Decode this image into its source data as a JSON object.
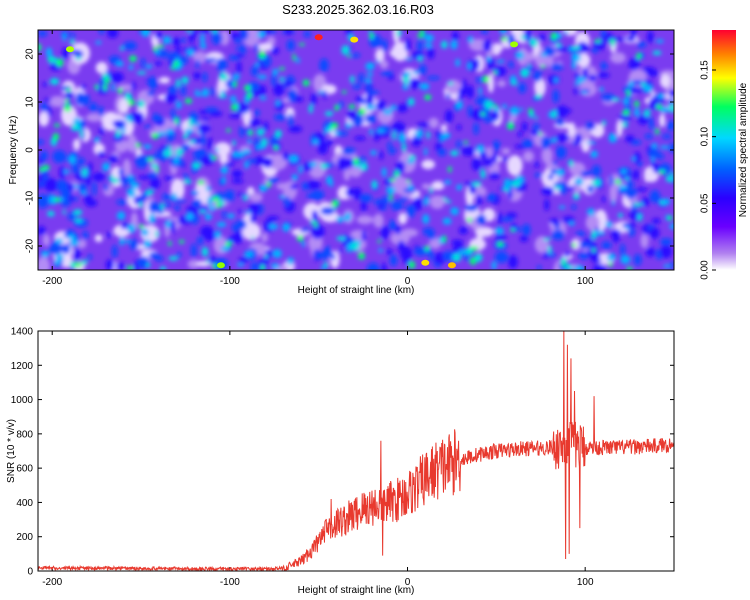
{
  "figure": {
    "title": "S233.2025.362.03.16.R03"
  },
  "chart_data": [
    {
      "type": "heatmap",
      "title": "S233.2025.362.03.16.R03",
      "xlabel": "Height of straight line (km)",
      "ylabel": "Frequency (Hz)",
      "xlim": [
        -208,
        150
      ],
      "ylim": [
        -25,
        25
      ],
      "xticks": [
        -200,
        -100,
        0,
        100
      ],
      "yticks": [
        -20,
        -10,
        0,
        10,
        20
      ],
      "colorbar": {
        "label": "Normalized spectral amplitude",
        "range": [
          0,
          0.18
        ],
        "ticks": [
          0.0,
          0.05,
          0.1,
          0.15
        ],
        "tick_labels": [
          "0.00",
          "0.05",
          "0.10",
          "0.15"
        ],
        "colormap": [
          "#ffffff",
          "#8a2be2",
          "#3a00ff",
          "#0040ff",
          "#00c8ff",
          "#00ff80",
          "#ffff00",
          "#ff8000",
          "#ff0040"
        ]
      },
      "description_of_values": "noise-like field, mostly 0.01-0.08, sparse peaks up to ~0.17"
    },
    {
      "type": "line",
      "xlabel": "Height of straight line (km)",
      "ylabel": "SNR (10 * v/v)",
      "xlim": [
        -208,
        150
      ],
      "ylim": [
        0,
        1400
      ],
      "xticks": [
        -200,
        -100,
        0,
        100
      ],
      "yticks": [
        0,
        200,
        400,
        600,
        800,
        1000,
        1200,
        1400
      ],
      "series": [
        {
          "name": "SNR",
          "color": "#e8392e",
          "x": [
            -208,
            -150,
            -100,
            -80,
            -70,
            -60,
            -55,
            -50,
            -45,
            -40,
            -35,
            -30,
            -25,
            -20,
            -15,
            -10,
            -5,
            0,
            5,
            10,
            15,
            20,
            25,
            30,
            40,
            50,
            60,
            70,
            80,
            85,
            90,
            95,
            100,
            110,
            120,
            130,
            140,
            150
          ],
          "values": [
            18,
            15,
            12,
            12,
            15,
            55,
            110,
            170,
            240,
            280,
            300,
            330,
            360,
            380,
            390,
            400,
            420,
            450,
            490,
            540,
            580,
            610,
            630,
            650,
            680,
            700,
            710,
            715,
            720,
            730,
            740,
            735,
            720,
            720,
            720,
            725,
            730,
            740
          ],
          "spikes": [
            {
              "x": -43,
              "y": 420
            },
            {
              "x": -15,
              "y": 760
            },
            {
              "x": -14,
              "y": 90
            },
            {
              "x": 88,
              "y": 1400
            },
            {
              "x": 89,
              "y": 70
            },
            {
              "x": 90,
              "y": 1320
            },
            {
              "x": 91,
              "y": 100
            },
            {
              "x": 92,
              "y": 1240
            },
            {
              "x": 94,
              "y": 1050
            },
            {
              "x": 97,
              "y": 250
            },
            {
              "x": 105,
              "y": 1020
            }
          ]
        }
      ]
    }
  ]
}
